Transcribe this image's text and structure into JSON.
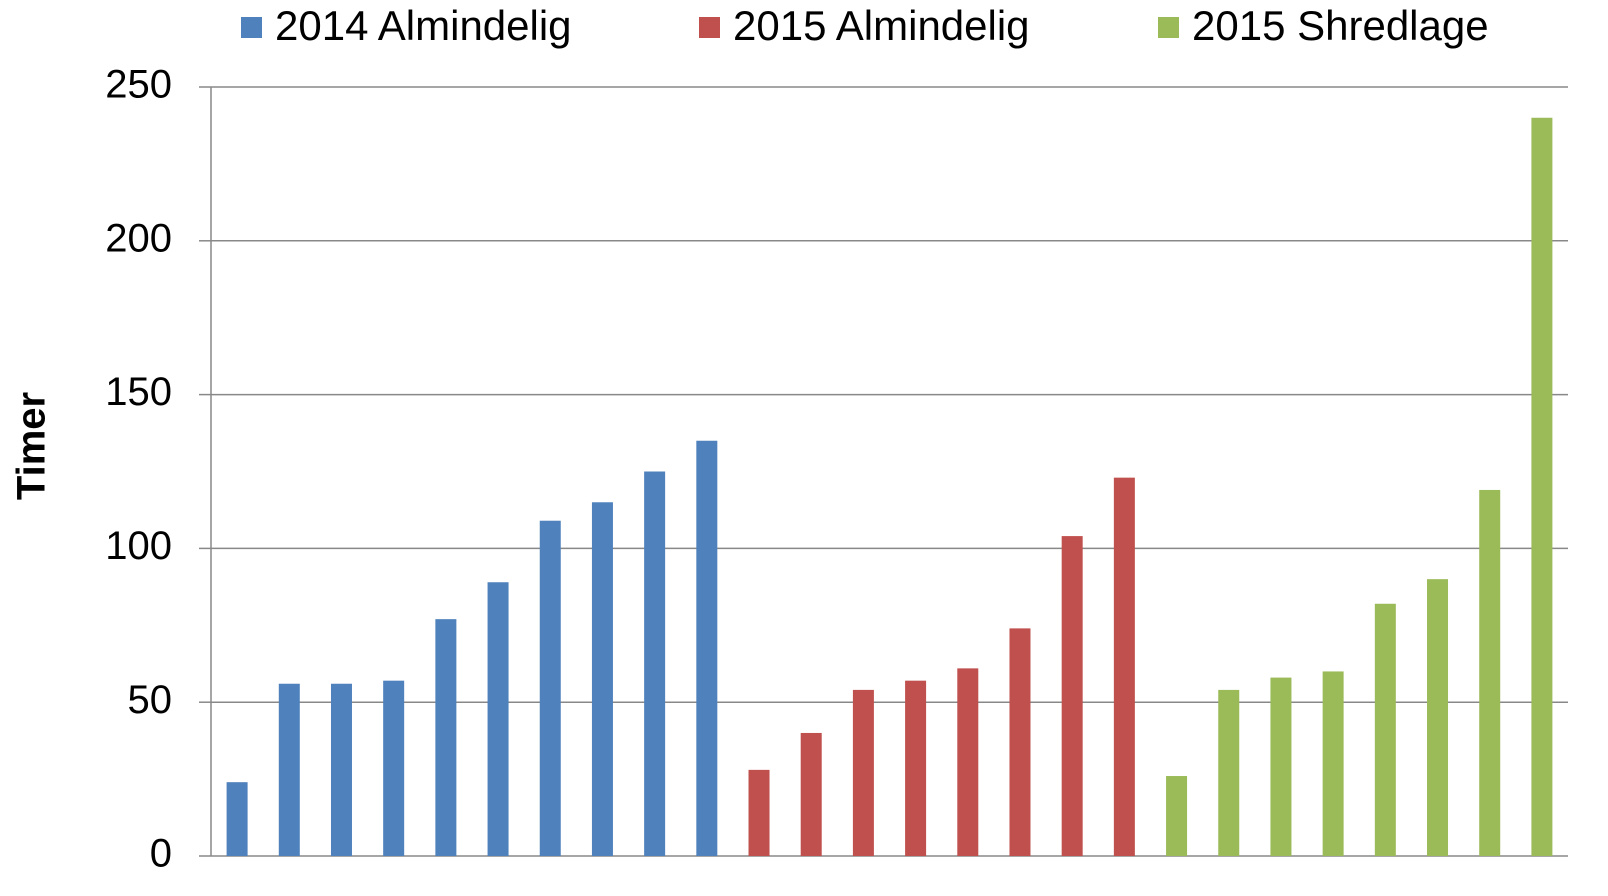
{
  "chart_data": {
    "type": "bar",
    "y_label": "Timer",
    "categories": [
      null,
      null,
      null,
      null,
      null,
      null,
      null,
      null,
      null,
      null,
      null,
      null,
      null,
      null,
      null,
      null,
      null,
      null,
      null,
      null,
      null,
      null,
      null,
      null,
      null,
      null
    ],
    "series": [
      {
        "name": "2014 Almindelig",
        "color": "#4f81bd",
        "values": [
          24,
          56,
          56,
          57,
          77,
          89,
          109,
          115,
          125,
          135,
          null,
          null,
          null,
          null,
          null,
          null,
          null,
          null,
          null,
          null,
          null,
          null,
          null,
          null,
          null,
          null
        ]
      },
      {
        "name": "2015 Almindelig",
        "color": "#c0504d",
        "values": [
          null,
          null,
          null,
          null,
          null,
          null,
          null,
          null,
          null,
          null,
          28,
          40,
          54,
          57,
          61,
          74,
          104,
          123,
          null,
          null,
          null,
          null,
          null,
          null,
          null,
          null
        ]
      },
      {
        "name": "2015 Shredlage",
        "color": "#9bbb59",
        "values": [
          null,
          null,
          null,
          null,
          null,
          null,
          null,
          null,
          null,
          null,
          null,
          null,
          null,
          null,
          null,
          null,
          null,
          null,
          26,
          54,
          58,
          60,
          82,
          90,
          119,
          240
        ]
      }
    ],
    "ylim": [
      0,
      250
    ],
    "yticks": [
      0,
      50,
      100,
      150,
      200,
      250
    ],
    "grid": true,
    "legend": "top"
  }
}
